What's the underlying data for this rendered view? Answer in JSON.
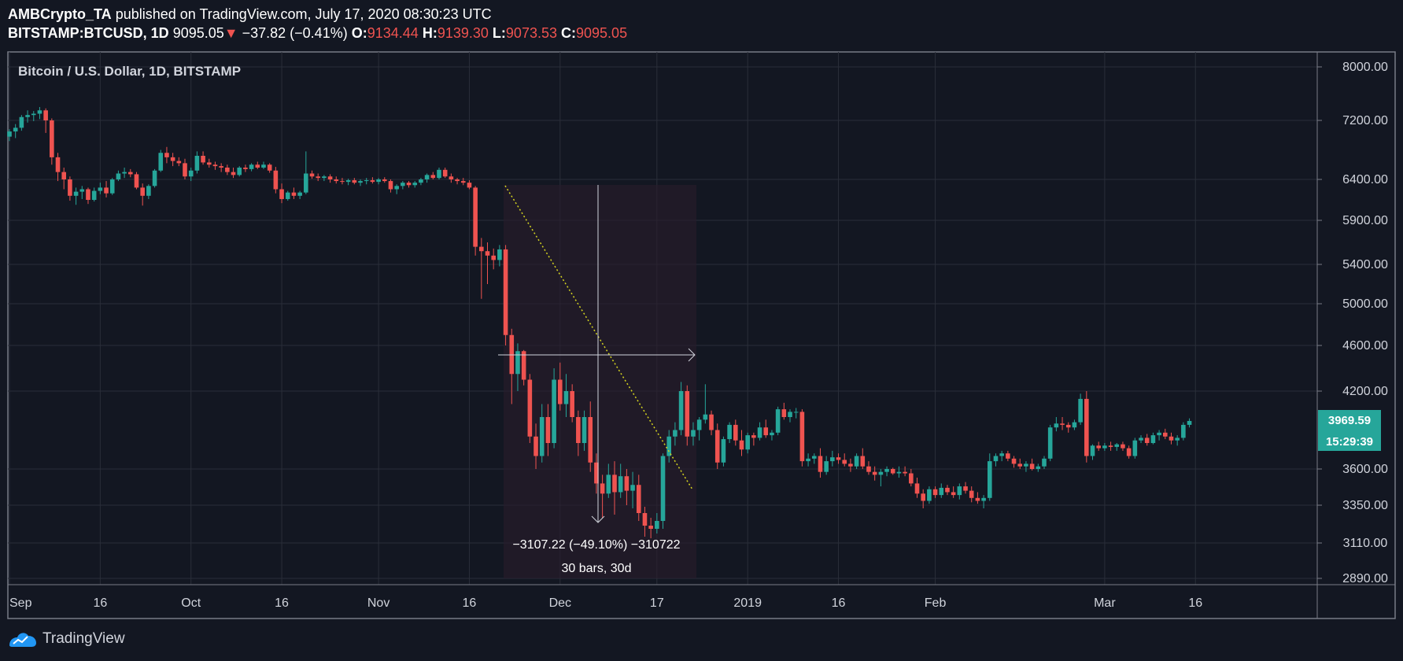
{
  "header": {
    "author": "AMBCrypto_TA",
    "published_text": "published on TradingView.com, July 17, 2020 08:30:23 UTC",
    "symbol": "BITSTAMP:BTCUSD, 1D",
    "last": "9095.05",
    "change": "−37.82 (−0.41%)",
    "o_label": "O:",
    "o": "9134.44",
    "h_label": "H:",
    "h": "9139.30",
    "l_label": "L:",
    "l": "9073.53",
    "c_label": "C:",
    "c": "9095.05"
  },
  "chart_title": "Bitcoin / U.S. Dollar, 1D, BITSTAMP",
  "price_badge": "3969.59",
  "time_badge": "15:29:39",
  "measure": {
    "line1": "−3107.22 (−49.10%) −310722",
    "line2": "30 bars, 30d"
  },
  "footer": {
    "brand": "TradingView"
  },
  "colors": {
    "up": "#26a69a",
    "down": "#ef5350",
    "bg": "#131722",
    "grid": "#2a2e39",
    "badge": "#26a69a"
  },
  "chart_data": {
    "type": "candlestick",
    "y_ticks": [
      8000,
      7200,
      6400,
      5900,
      5400,
      5000,
      4600,
      4200,
      3600,
      3350,
      3110,
      2890
    ],
    "y_tick_labels": [
      "8000.00",
      "7200.00",
      "6400.00",
      "5900.00",
      "5400.00",
      "5000.00",
      "4600.00",
      "4200.00",
      "3600.00",
      "3350.00",
      "3110.00",
      "2890.00"
    ],
    "x_ticks": [
      {
        "label": "Sep",
        "day": 0
      },
      {
        "label": "16",
        "day": 15
      },
      {
        "label": "Oct",
        "day": 30
      },
      {
        "label": "16",
        "day": 45
      },
      {
        "label": "Nov",
        "day": 61
      },
      {
        "label": "16",
        "day": 76
      },
      {
        "label": "Dec",
        "day": 91
      },
      {
        "label": "17",
        "day": 107
      },
      {
        "label": "2019",
        "day": 122
      },
      {
        "label": "16",
        "day": 137
      },
      {
        "label": "Feb",
        "day": 153
      },
      {
        "label": "Mar",
        "day": 181
      },
      {
        "label": "16",
        "day": 196
      }
    ],
    "ohlc": [
      [
        6980,
        7080,
        6920,
        7050
      ],
      [
        7050,
        7150,
        6960,
        7100
      ],
      [
        7100,
        7280,
        7060,
        7250
      ],
      [
        7250,
        7350,
        7170,
        7280
      ],
      [
        7280,
        7340,
        7190,
        7300
      ],
      [
        7300,
        7400,
        7220,
        7350
      ],
      [
        7350,
        7380,
        7030,
        7200
      ],
      [
        7200,
        7230,
        6600,
        6700
      ],
      [
        6700,
        6760,
        6380,
        6500
      ],
      [
        6500,
        6560,
        6280,
        6400
      ],
      [
        6400,
        6440,
        6140,
        6200
      ],
      [
        6200,
        6300,
        6090,
        6250
      ],
      [
        6250,
        6320,
        6160,
        6280
      ],
      [
        6280,
        6300,
        6100,
        6150
      ],
      [
        6150,
        6300,
        6130,
        6260
      ],
      [
        6260,
        6360,
        6220,
        6300
      ],
      [
        6300,
        6380,
        6180,
        6230
      ],
      [
        6230,
        6420,
        6210,
        6400
      ],
      [
        6400,
        6520,
        6380,
        6480
      ],
      [
        6480,
        6560,
        6420,
        6500
      ],
      [
        6500,
        6540,
        6430,
        6470
      ],
      [
        6470,
        6500,
        6280,
        6300
      ],
      [
        6300,
        6350,
        6080,
        6200
      ],
      [
        6200,
        6340,
        6160,
        6320
      ],
      [
        6320,
        6540,
        6300,
        6520
      ],
      [
        6520,
        6800,
        6500,
        6760
      ],
      [
        6760,
        6840,
        6620,
        6700
      ],
      [
        6700,
        6760,
        6580,
        6650
      ],
      [
        6650,
        6700,
        6580,
        6620
      ],
      [
        6620,
        6680,
        6400,
        6440
      ],
      [
        6440,
        6560,
        6380,
        6520
      ],
      [
        6520,
        6780,
        6480,
        6720
      ],
      [
        6720,
        6780,
        6600,
        6630
      ],
      [
        6630,
        6680,
        6560,
        6600
      ],
      [
        6600,
        6640,
        6530,
        6580
      ],
      [
        6580,
        6620,
        6500,
        6560
      ],
      [
        6560,
        6600,
        6460,
        6500
      ],
      [
        6500,
        6560,
        6420,
        6460
      ],
      [
        6460,
        6580,
        6440,
        6560
      ],
      [
        6560,
        6600,
        6500,
        6540
      ],
      [
        6540,
        6620,
        6510,
        6600
      ],
      [
        6600,
        6640,
        6540,
        6560
      ],
      [
        6560,
        6640,
        6540,
        6600
      ],
      [
        6600,
        6620,
        6490,
        6520
      ],
      [
        6520,
        6570,
        6230,
        6280
      ],
      [
        6280,
        6350,
        6110,
        6160
      ],
      [
        6160,
        6260,
        6140,
        6240
      ],
      [
        6240,
        6300,
        6160,
        6200
      ],
      [
        6200,
        6260,
        6160,
        6240
      ],
      [
        6240,
        6780,
        6220,
        6480
      ],
      [
        6480,
        6520,
        6410,
        6440
      ],
      [
        6440,
        6480,
        6380,
        6420
      ],
      [
        6420,
        6460,
        6380,
        6440
      ],
      [
        6440,
        6470,
        6360,
        6400
      ],
      [
        6400,
        6440,
        6350,
        6380
      ],
      [
        6380,
        6420,
        6340,
        6370
      ],
      [
        6370,
        6410,
        6330,
        6390
      ],
      [
        6390,
        6420,
        6340,
        6360
      ],
      [
        6360,
        6400,
        6320,
        6380
      ],
      [
        6380,
        6420,
        6340,
        6390
      ],
      [
        6390,
        6430,
        6350,
        6370
      ],
      [
        6370,
        6420,
        6340,
        6400
      ],
      [
        6400,
        6430,
        6360,
        6380
      ],
      [
        6380,
        6400,
        6240,
        6280
      ],
      [
        6280,
        6340,
        6220,
        6320
      ],
      [
        6320,
        6380,
        6280,
        6360
      ],
      [
        6360,
        6380,
        6300,
        6330
      ],
      [
        6330,
        6380,
        6300,
        6360
      ],
      [
        6360,
        6420,
        6330,
        6400
      ],
      [
        6400,
        6480,
        6360,
        6460
      ],
      [
        6460,
        6500,
        6400,
        6420
      ],
      [
        6420,
        6560,
        6400,
        6530
      ],
      [
        6530,
        6560,
        6420,
        6440
      ],
      [
        6440,
        6480,
        6360,
        6400
      ],
      [
        6400,
        6420,
        6340,
        6380
      ],
      [
        6380,
        6420,
        6330,
        6360
      ],
      [
        6360,
        6390,
        6280,
        6300
      ],
      [
        6300,
        6320,
        5500,
        5600
      ],
      [
        5600,
        5700,
        5050,
        5550
      ],
      [
        5550,
        5650,
        5200,
        5500
      ],
      [
        5500,
        5580,
        5350,
        5450
      ],
      [
        5450,
        5620,
        5380,
        5570
      ],
      [
        5570,
        5620,
        4600,
        4700
      ],
      [
        4700,
        4760,
        4100,
        4350
      ],
      [
        4350,
        4620,
        4200,
        4550
      ],
      [
        4550,
        4560,
        4250,
        4300
      ],
      [
        4300,
        4350,
        3800,
        3850
      ],
      [
        3850,
        3950,
        3600,
        3700
      ],
      [
        3700,
        4100,
        3650,
        4000
      ],
      [
        4000,
        4100,
        3700,
        3800
      ],
      [
        3800,
        4400,
        3760,
        4300
      ],
      [
        4300,
        4450,
        4050,
        4100
      ],
      [
        4100,
        4350,
        4000,
        4200
      ],
      [
        4200,
        4260,
        3960,
        4000
      ],
      [
        4000,
        4050,
        3700,
        3800
      ],
      [
        3800,
        4050,
        3740,
        4000
      ],
      [
        4000,
        4120,
        3580,
        3650
      ],
      [
        3650,
        3720,
        3430,
        3500
      ],
      [
        3500,
        3560,
        3270,
        3430
      ],
      [
        3430,
        3640,
        3400,
        3560
      ],
      [
        3560,
        3660,
        3290,
        3440
      ],
      [
        3440,
        3640,
        3400,
        3550
      ],
      [
        3550,
        3600,
        3350,
        3450
      ],
      [
        3450,
        3580,
        3330,
        3490
      ],
      [
        3490,
        3560,
        3250,
        3300
      ],
      [
        3300,
        3340,
        3150,
        3220
      ],
      [
        3220,
        3270,
        3140,
        3200
      ],
      [
        3200,
        3300,
        3170,
        3250
      ],
      [
        3250,
        3720,
        3200,
        3700
      ],
      [
        3700,
        3900,
        3650,
        3850
      ],
      [
        3850,
        3960,
        3780,
        3900
      ],
      [
        3900,
        4280,
        3860,
        4200
      ],
      [
        4200,
        4250,
        3780,
        3850
      ],
      [
        3850,
        3960,
        3780,
        3900
      ],
      [
        3900,
        4000,
        3820,
        3980
      ],
      [
        3980,
        4260,
        3950,
        4020
      ],
      [
        4020,
        4050,
        3860,
        3900
      ],
      [
        3900,
        3950,
        3600,
        3650
      ],
      [
        3650,
        3850,
        3620,
        3830
      ],
      [
        3830,
        3960,
        3800,
        3940
      ],
      [
        3940,
        3980,
        3780,
        3820
      ],
      [
        3820,
        3900,
        3700,
        3750
      ],
      [
        3750,
        3880,
        3720,
        3860
      ],
      [
        3860,
        3880,
        3780,
        3840
      ],
      [
        3840,
        3960,
        3820,
        3920
      ],
      [
        3920,
        3980,
        3840,
        3860
      ],
      [
        3860,
        3900,
        3820,
        3880
      ],
      [
        3880,
        4080,
        3860,
        4060
      ],
      [
        4060,
        4110,
        3980,
        4000
      ],
      [
        4000,
        4060,
        3960,
        4040
      ],
      [
        4040,
        4070,
        3990,
        4040
      ],
      [
        4040,
        4060,
        3620,
        3660
      ],
      [
        3660,
        3720,
        3620,
        3680
      ],
      [
        3680,
        3720,
        3640,
        3700
      ],
      [
        3700,
        3760,
        3540,
        3580
      ],
      [
        3580,
        3700,
        3560,
        3660
      ],
      [
        3660,
        3740,
        3620,
        3690
      ],
      [
        3690,
        3720,
        3640,
        3670
      ],
      [
        3670,
        3720,
        3620,
        3640
      ],
      [
        3640,
        3680,
        3580,
        3620
      ],
      [
        3620,
        3720,
        3600,
        3700
      ],
      [
        3700,
        3760,
        3600,
        3620
      ],
      [
        3620,
        3660,
        3560,
        3580
      ],
      [
        3580,
        3620,
        3520,
        3560
      ],
      [
        3560,
        3600,
        3480,
        3580
      ],
      [
        3580,
        3620,
        3550,
        3600
      ],
      [
        3600,
        3610,
        3560,
        3570
      ],
      [
        3570,
        3620,
        3540,
        3580
      ],
      [
        3580,
        3620,
        3550,
        3570
      ],
      [
        3570,
        3600,
        3480,
        3500
      ],
      [
        3500,
        3540,
        3400,
        3430
      ],
      [
        3430,
        3460,
        3330,
        3380
      ],
      [
        3380,
        3480,
        3360,
        3460
      ],
      [
        3460,
        3480,
        3400,
        3420
      ],
      [
        3420,
        3500,
        3400,
        3470
      ],
      [
        3470,
        3490,
        3420,
        3440
      ],
      [
        3440,
        3480,
        3400,
        3420
      ],
      [
        3420,
        3500,
        3390,
        3480
      ],
      [
        3480,
        3510,
        3430,
        3450
      ],
      [
        3450,
        3480,
        3370,
        3400
      ],
      [
        3400,
        3440,
        3360,
        3380
      ],
      [
        3380,
        3420,
        3330,
        3400
      ],
      [
        3400,
        3720,
        3380,
        3660
      ],
      [
        3660,
        3720,
        3620,
        3700
      ],
      [
        3700,
        3740,
        3660,
        3720
      ],
      [
        3720,
        3740,
        3660,
        3680
      ],
      [
        3680,
        3700,
        3610,
        3640
      ],
      [
        3640,
        3680,
        3600,
        3620
      ],
      [
        3620,
        3660,
        3580,
        3640
      ],
      [
        3640,
        3680,
        3590,
        3600
      ],
      [
        3600,
        3640,
        3580,
        3620
      ],
      [
        3620,
        3700,
        3600,
        3680
      ],
      [
        3680,
        3940,
        3660,
        3920
      ],
      [
        3920,
        4000,
        3890,
        3950
      ],
      [
        3950,
        4000,
        3900,
        3940
      ],
      [
        3940,
        3960,
        3880,
        3920
      ],
      [
        3920,
        3980,
        3900,
        3960
      ],
      [
        3960,
        4180,
        3940,
        4140
      ],
      [
        4140,
        4200,
        3650,
        3700
      ],
      [
        3700,
        3790,
        3670,
        3780
      ],
      [
        3780,
        3810,
        3740,
        3760
      ],
      [
        3760,
        3800,
        3740,
        3780
      ],
      [
        3780,
        3810,
        3740,
        3770
      ],
      [
        3770,
        3800,
        3740,
        3790
      ],
      [
        3790,
        3810,
        3740,
        3760
      ],
      [
        3760,
        3780,
        3680,
        3700
      ],
      [
        3700,
        3840,
        3680,
        3820
      ],
      [
        3820,
        3860,
        3800,
        3840
      ],
      [
        3840,
        3870,
        3780,
        3800
      ],
      [
        3800,
        3880,
        3790,
        3860
      ],
      [
        3860,
        3900,
        3820,
        3880
      ],
      [
        3880,
        3910,
        3830,
        3850
      ],
      [
        3850,
        3880,
        3790,
        3820
      ],
      [
        3820,
        3860,
        3780,
        3840
      ],
      [
        3840,
        3960,
        3820,
        3940
      ],
      [
        3940,
        3990,
        3920,
        3970
      ]
    ]
  }
}
